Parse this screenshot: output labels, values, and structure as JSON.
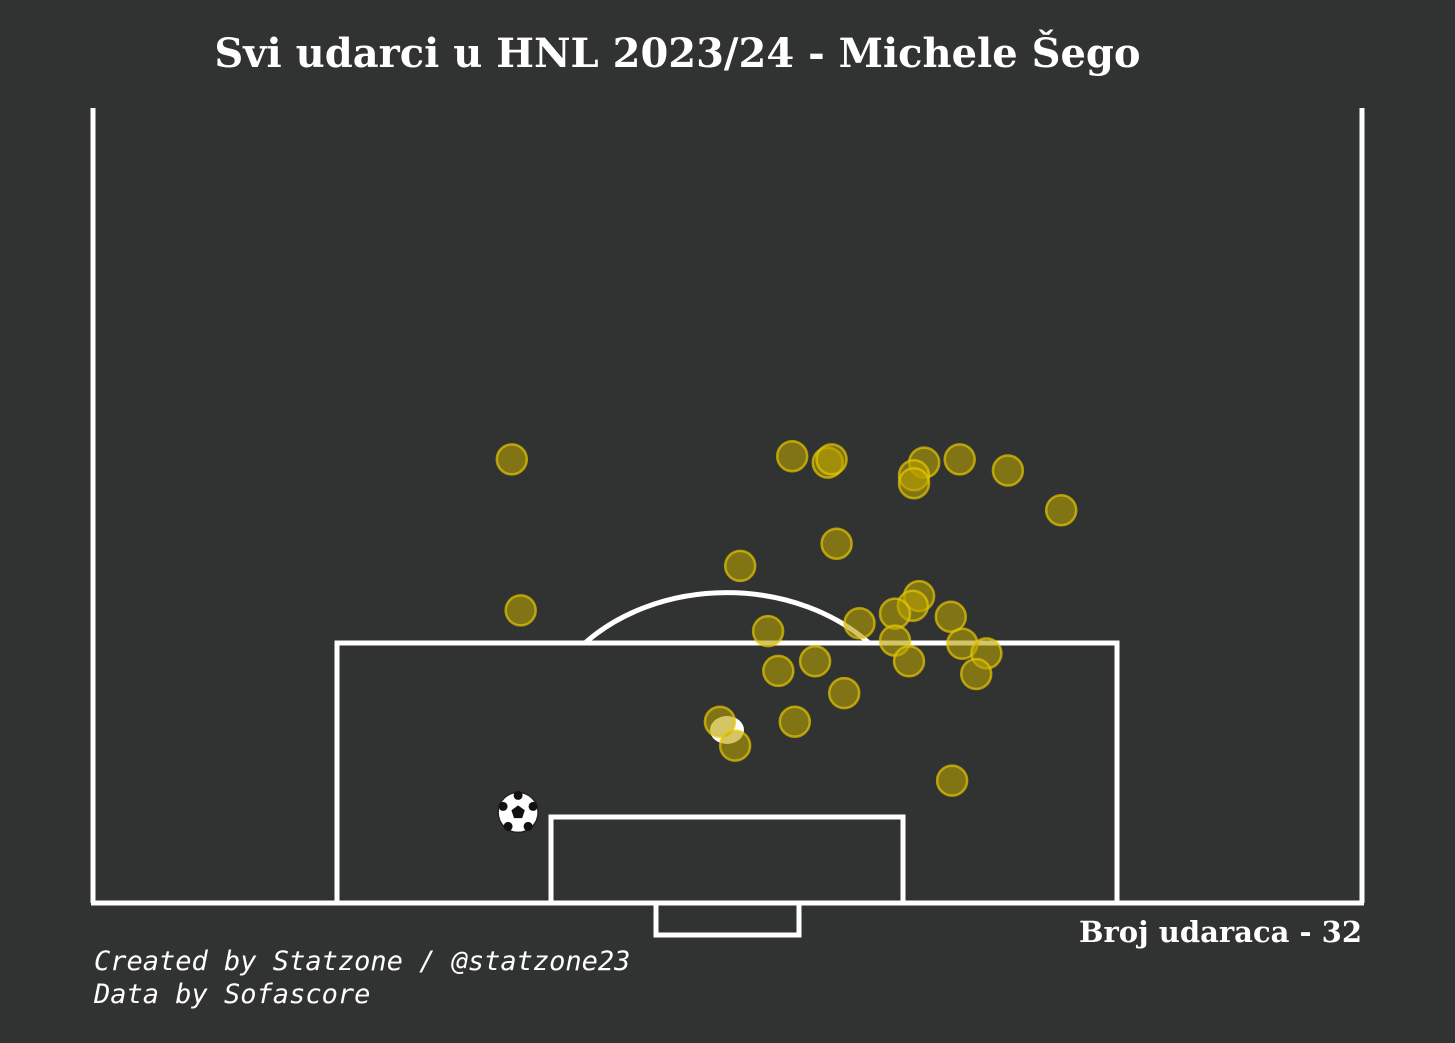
{
  "title": "Svi udarci u HNL 2023/24 - Michele Šego",
  "shot_count_label": "Broj udaraca - 32",
  "credits": {
    "line1": "Created by Statzone / @statzone23",
    "line2": "Data by Sofascore"
  },
  "colors": {
    "background": "#313232",
    "lines": "#ffffff",
    "shot_fill": "#b8a000",
    "shot_stroke": "#e6c800"
  },
  "chart_data": {
    "type": "scatter",
    "x_range": [
      0,
      100
    ],
    "y_range": [
      50,
      100
    ],
    "goal_marker": "soccer-ball-icon",
    "goals": [
      {
        "x": 33.5,
        "y": 94.3
      }
    ],
    "shots": [
      {
        "x": 53.2,
        "y": 82.9,
        "goal": false
      },
      {
        "x": 58.6,
        "y": 77.4,
        "goal": false
      },
      {
        "x": 55.1,
        "y": 71.9,
        "goal": false
      },
      {
        "x": 57.9,
        "y": 72.3,
        "goal": false
      },
      {
        "x": 58.2,
        "y": 72.1,
        "goal": false
      },
      {
        "x": 33.0,
        "y": 72.1,
        "goal": false
      },
      {
        "x": 65.5,
        "y": 72.3,
        "goal": false
      },
      {
        "x": 64.7,
        "y": 73.1,
        "goal": false
      },
      {
        "x": 64.7,
        "y": 73.6,
        "goal": false
      },
      {
        "x": 68.3,
        "y": 72.1,
        "goal": false
      },
      {
        "x": 72.1,
        "y": 72.8,
        "goal": false
      },
      {
        "x": 76.3,
        "y": 75.3,
        "goal": false
      },
      {
        "x": 51.0,
        "y": 78.8,
        "goal": false
      },
      {
        "x": 33.7,
        "y": 81.6,
        "goal": false
      },
      {
        "x": 65.1,
        "y": 80.7,
        "goal": false
      },
      {
        "x": 64.6,
        "y": 81.3,
        "goal": false
      },
      {
        "x": 63.2,
        "y": 81.8,
        "goal": false
      },
      {
        "x": 60.4,
        "y": 82.4,
        "goal": false
      },
      {
        "x": 63.2,
        "y": 83.5,
        "goal": false
      },
      {
        "x": 67.6,
        "y": 82.0,
        "goal": false
      },
      {
        "x": 68.5,
        "y": 83.7,
        "goal": false
      },
      {
        "x": 70.4,
        "y": 84.3,
        "goal": false
      },
      {
        "x": 64.3,
        "y": 84.8,
        "goal": false
      },
      {
        "x": 56.9,
        "y": 84.8,
        "goal": false
      },
      {
        "x": 54.0,
        "y": 85.4,
        "goal": false
      },
      {
        "x": 69.6,
        "y": 85.6,
        "goal": false
      },
      {
        "x": 49.4,
        "y": 88.6,
        "goal": false
      },
      {
        "x": 55.3,
        "y": 88.6,
        "goal": false
      },
      {
        "x": 50.6,
        "y": 90.1,
        "goal": false
      },
      {
        "x": 67.7,
        "y": 92.3,
        "goal": false
      },
      {
        "x": 59.2,
        "y": 86.8,
        "goal": false
      }
    ]
  }
}
